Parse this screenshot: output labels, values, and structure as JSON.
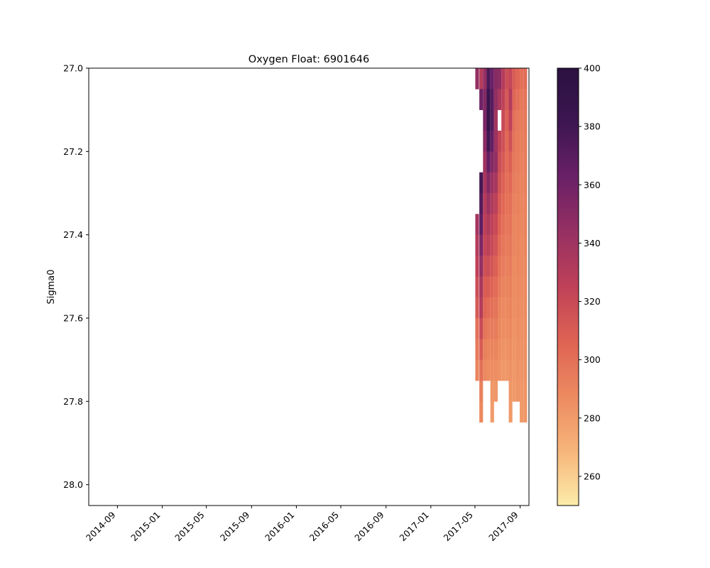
{
  "chart_data": {
    "type": "heatmap",
    "title": "Oxygen Float: 6901646",
    "xlabel": "",
    "ylabel": "Sigma0",
    "x_type": "date",
    "xlim": [
      "2014-06-15",
      "2017-09-25"
    ],
    "x_ticks": [
      "2014-09",
      "2015-01",
      "2015-05",
      "2015-09",
      "2016-01",
      "2016-05",
      "2016-09",
      "2017-01",
      "2017-05",
      "2017-09"
    ],
    "ylim": [
      28.05,
      27.0
    ],
    "y_inverted": true,
    "y_ticks": [
      "27.0",
      "27.2",
      "27.4",
      "27.6",
      "27.8",
      "28.0"
    ],
    "colorbar": {
      "colormap": "magma_r",
      "range": [
        250,
        400
      ],
      "ticks": [
        "260",
        "280",
        "300",
        "320",
        "340",
        "360",
        "380",
        "400"
      ],
      "colors": [
        "#fcecaa",
        "#f7b57a",
        "#ec8a60",
        "#df6354",
        "#bf4158",
        "#963062",
        "#6a2067",
        "#3d1651",
        "#2b1141"
      ]
    },
    "grid": false,
    "cell_height": 0.05,
    "profiles": [
      {
        "date": "2017-05-07",
        "top": 27.0,
        "bottom": 27.05,
        "oxygen": [
          345
        ]
      },
      {
        "date": "2017-05-07",
        "top": 27.35,
        "bottom": 27.75,
        "oxygen": [
          338,
          330,
          325,
          318,
          312,
          300,
          295,
          290
        ]
      },
      {
        "date": "2017-05-18",
        "top": 27.0,
        "bottom": 27.85,
        "oxygen": [
          330,
          360,
          0,
          0,
          0,
          378,
          372,
          368,
          355,
          345,
          335,
          330,
          320,
          310,
          300,
          292,
          288
        ]
      },
      {
        "date": "2017-05-28",
        "top": 27.0,
        "bottom": 27.75,
        "oxygen": [
          345,
          352,
          355,
          348,
          340,
          336,
          330,
          326,
          322,
          316,
          310,
          305,
          298,
          292,
          288
        ]
      },
      {
        "date": "2017-06-07",
        "top": 27.0,
        "bottom": 27.75,
        "oxygen": [
          375,
          385,
          390,
          380,
          365,
          352,
          342,
          333,
          326,
          318,
          310,
          302,
          295,
          290,
          286
        ]
      },
      {
        "date": "2017-06-17",
        "top": 27.0,
        "bottom": 27.85,
        "oxygen": [
          362,
          370,
          372,
          365,
          352,
          340,
          332,
          325,
          320,
          314,
          306,
          300,
          294,
          290,
          286,
          282,
          280
        ]
      },
      {
        "date": "2017-06-27",
        "top": 27.0,
        "bottom": 27.8,
        "oxygen": [
          350,
          345,
          338,
          340,
          345,
          336,
          326,
          320,
          314,
          308,
          302,
          298,
          294,
          290,
          286,
          282
        ]
      },
      {
        "date": "2017-07-07",
        "top": 27.0,
        "bottom": 27.75,
        "oxygen": [
          348,
          335,
          0,
          324,
          318,
          314,
          310,
          306,
          302,
          298,
          294,
          290,
          288,
          286,
          284
        ]
      },
      {
        "date": "2017-07-17",
        "top": 27.0,
        "bottom": 27.75,
        "oxygen": [
          330,
          325,
          320,
          316,
          312,
          308,
          304,
          300,
          297,
          294,
          291,
          288,
          286,
          284,
          282
        ]
      },
      {
        "date": "2017-07-27",
        "top": 27.0,
        "bottom": 27.75,
        "oxygen": [
          318,
          312,
          308,
          304,
          302,
          300,
          298,
          296,
          294,
          292,
          290,
          288,
          286,
          284,
          282
        ]
      },
      {
        "date": "2017-08-06",
        "top": 27.0,
        "bottom": 27.85,
        "oxygen": [
          322,
          330,
          325,
          316,
          308,
          304,
          300,
          298,
          296,
          294,
          292,
          290,
          288,
          286,
          284,
          282,
          280
        ]
      },
      {
        "date": "2017-08-16",
        "top": 27.0,
        "bottom": 27.8,
        "oxygen": [
          310,
          305,
          300,
          298,
          296,
          294,
          292,
          290,
          290,
          288,
          287,
          286,
          284,
          283,
          282,
          281
        ]
      },
      {
        "date": "2017-08-26",
        "top": 27.0,
        "bottom": 27.8,
        "oxygen": [
          305,
          300,
          296,
          295,
          294,
          293,
          292,
          291,
          290,
          289,
          288,
          287,
          286,
          285,
          284,
          283
        ]
      },
      {
        "date": "2017-09-05",
        "top": 27.0,
        "bottom": 27.85,
        "oxygen": [
          300,
          296,
          294,
          293,
          292,
          291,
          290,
          289,
          288,
          288,
          287,
          286,
          285,
          284,
          283,
          282,
          281
        ]
      },
      {
        "date": "2017-09-15",
        "top": 27.0,
        "bottom": 27.85,
        "oxygen": [
          302,
          298,
          296,
          295,
          294,
          293,
          292,
          291,
          290,
          289,
          288,
          287,
          286,
          285,
          284,
          283,
          282
        ]
      }
    ]
  }
}
